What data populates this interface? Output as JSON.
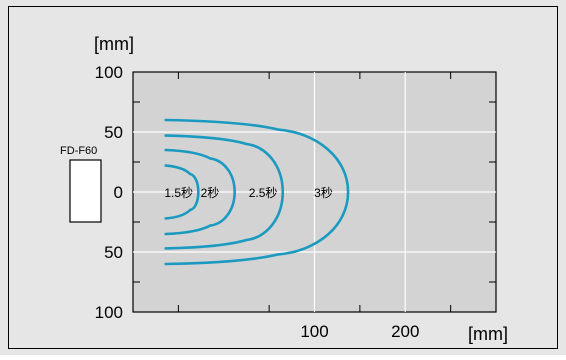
{
  "chart_data": {
    "type": "line",
    "title": "",
    "xlabel": "[mm]",
    "ylabel": "[mm]",
    "xlim": [
      -100,
      300
    ],
    "ylim": [
      -100,
      100
    ],
    "x_ticks": [
      {
        "value": 100,
        "label": "100"
      },
      {
        "value": 200,
        "label": "200"
      }
    ],
    "y_ticks": [
      {
        "value": 100,
        "label": "100"
      },
      {
        "value": 50,
        "label": "50"
      },
      {
        "value": 0,
        "label": "0"
      },
      {
        "value": -50,
        "label": "50"
      },
      {
        "value": -100,
        "label": "100"
      }
    ],
    "grid": true,
    "sensor_label": "FD-F60",
    "series": [
      {
        "name": "1.5秒",
        "x": [
          -64,
          -37,
          -28,
          -37,
          -64
        ],
        "y": [
          22,
          15,
          0,
          -15,
          -22
        ]
      },
      {
        "name": "2秒",
        "x": [
          -64,
          -15,
          12,
          -15,
          -64
        ],
        "y": [
          35,
          28,
          0,
          -28,
          -35
        ]
      },
      {
        "name": "2.5秒",
        "x": [
          -64,
          25,
          65,
          25,
          -64
        ],
        "y": [
          47,
          40,
          0,
          -40,
          -47
        ]
      },
      {
        "name": "3秒",
        "x": [
          -64,
          60,
          137,
          60,
          -64
        ],
        "y": [
          60,
          52,
          0,
          -52,
          -60
        ]
      }
    ],
    "colors": {
      "background": "#e6e6e6",
      "plot_area": "#d3d3d3",
      "grid": "#ffffff",
      "curve": "#1a9ac0"
    }
  }
}
